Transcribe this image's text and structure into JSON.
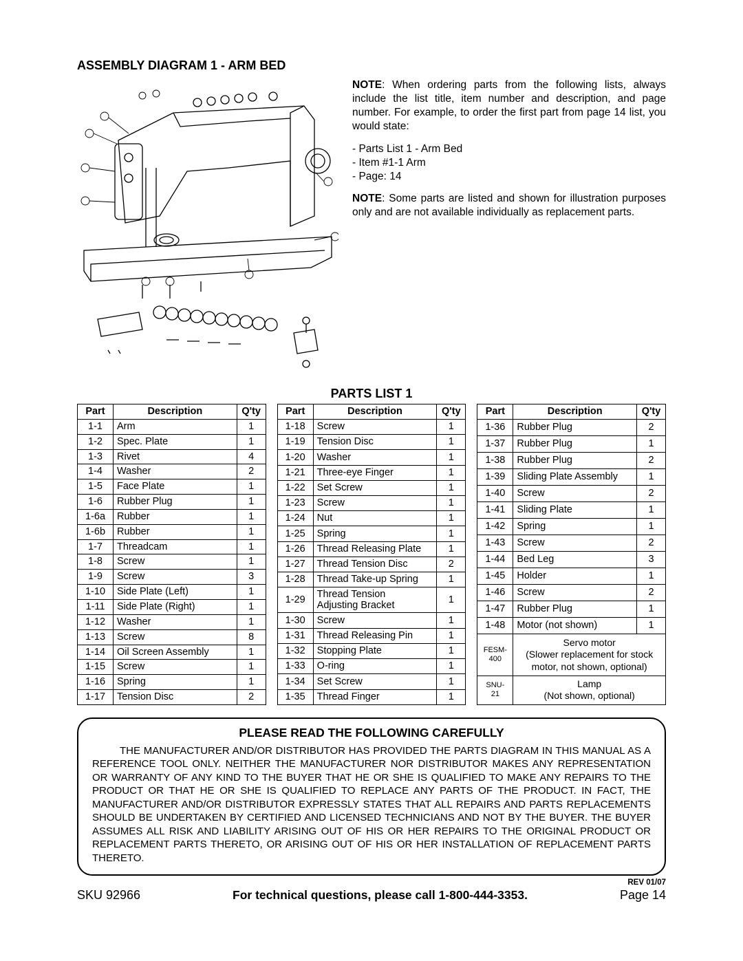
{
  "title": "ASSEMBLY DIAGRAM 1 - ARM BED",
  "note1_bold": "NOTE",
  "note1": ": When ordering parts from the following lists, always include the list title, item number and description, and page number. For example, to order the first part from page 14 list, you would state:",
  "note1_lines": [
    "- Parts List 1 - Arm Bed",
    "- Item #1-1   Arm",
    "- Page: 14"
  ],
  "note2_bold": "NOTE",
  "note2": ": Some parts are listed and shown for illustration purposes only and are not available individually as replacement parts.",
  "parts_title": "PARTS LIST 1",
  "headers": {
    "part": "Part",
    "desc": "Description",
    "qty": "Q'ty"
  },
  "col1": [
    {
      "p": "1-1",
      "d": "Arm",
      "q": "1"
    },
    {
      "p": "1-2",
      "d": "Spec. Plate",
      "q": "1"
    },
    {
      "p": "1-3",
      "d": "Rivet",
      "q": "4"
    },
    {
      "p": "1-4",
      "d": "Washer",
      "q": "2"
    },
    {
      "p": "1-5",
      "d": "Face Plate",
      "q": "1"
    },
    {
      "p": "1-6",
      "d": "Rubber Plug",
      "q": "1"
    },
    {
      "p": "1-6a",
      "d": "Rubber",
      "q": "1"
    },
    {
      "p": "1-6b",
      "d": "Rubber",
      "q": "1"
    },
    {
      "p": "1-7",
      "d": "Threadcam",
      "q": "1"
    },
    {
      "p": "1-8",
      "d": "Screw",
      "q": "1"
    },
    {
      "p": "1-9",
      "d": "Screw",
      "q": "3"
    },
    {
      "p": "1-10",
      "d": "Side Plate (Left)",
      "q": "1"
    },
    {
      "p": "1-11",
      "d": "Side Plate (Right)",
      "q": "1"
    },
    {
      "p": "1-12",
      "d": "Washer",
      "q": "1"
    },
    {
      "p": "1-13",
      "d": "Screw",
      "q": "8"
    },
    {
      "p": "1-14",
      "d": "Oil Screen Assembly",
      "q": "1"
    },
    {
      "p": "1-15",
      "d": "Screw",
      "q": "1"
    },
    {
      "p": "1-16",
      "d": "Spring",
      "q": "1"
    },
    {
      "p": "1-17",
      "d": "Tension Disc",
      "q": "2"
    }
  ],
  "col2": [
    {
      "p": "1-18",
      "d": "Screw",
      "q": "1"
    },
    {
      "p": "1-19",
      "d": "Tension Disc",
      "q": "1"
    },
    {
      "p": "1-20",
      "d": "Washer",
      "q": "1"
    },
    {
      "p": "1-21",
      "d": "Three-eye Finger",
      "q": "1"
    },
    {
      "p": "1-22",
      "d": "Set Screw",
      "q": "1"
    },
    {
      "p": "1-23",
      "d": "Screw",
      "q": "1"
    },
    {
      "p": "1-24",
      "d": "Nut",
      "q": "1"
    },
    {
      "p": "1-25",
      "d": "Spring",
      "q": "1"
    },
    {
      "p": "1-26",
      "d": "Thread Releasing Plate",
      "q": "1"
    },
    {
      "p": "1-27",
      "d": "Thread Tension Disc",
      "q": "2"
    },
    {
      "p": "1-28",
      "d": "Thread Take-up Spring",
      "q": "1"
    },
    {
      "p": "1-29",
      "d": "Thread Tension Adjusting Bracket",
      "q": "1",
      "tall": true
    },
    {
      "p": "1-30",
      "d": "Screw",
      "q": "1"
    },
    {
      "p": "1-31",
      "d": "Thread Releasing Pin",
      "q": "1"
    },
    {
      "p": "1-32",
      "d": "Stopping Plate",
      "q": "1"
    },
    {
      "p": "1-33",
      "d": "O-ring",
      "q": "1"
    },
    {
      "p": "1-34",
      "d": "Set Screw",
      "q": "1"
    },
    {
      "p": "1-35",
      "d": "Thread Finger",
      "q": "1"
    }
  ],
  "col3": [
    {
      "p": "1-36",
      "d": "Rubber Plug",
      "q": "2"
    },
    {
      "p": "1-37",
      "d": "Rubber Plug",
      "q": "1"
    },
    {
      "p": "1-38",
      "d": "Rubber Plug",
      "q": "2"
    },
    {
      "p": "1-39",
      "d": "Sliding Plate Assembly",
      "q": "1"
    },
    {
      "p": "1-40",
      "d": "Screw",
      "q": "2"
    },
    {
      "p": "1-41",
      "d": "Sliding Plate",
      "q": "1"
    },
    {
      "p": "1-42",
      "d": "Spring",
      "q": "1"
    },
    {
      "p": "1-43",
      "d": "Screw",
      "q": "2"
    },
    {
      "p": "1-44",
      "d": "Bed Leg",
      "q": "3"
    },
    {
      "p": "1-45",
      "d": "Holder",
      "q": "1"
    },
    {
      "p": "1-46",
      "d": "Screw",
      "q": "2"
    },
    {
      "p": "1-47",
      "d": "Rubber Plug",
      "q": "1"
    },
    {
      "p": "1-48",
      "d": "Motor (not shown)",
      "q": "1"
    }
  ],
  "col3_special": [
    {
      "p": "FESM-400",
      "d": "Servo motor\n(Slower replacement for stock motor, not shown, optional)"
    },
    {
      "p": "SNU-21",
      "d": "Lamp\n(Not shown, optional)"
    }
  ],
  "warning_title": "PLEASE READ THE FOLLOWING CAREFULLY",
  "warning_text": "THE MANUFACTURER AND/OR DISTRIBUTOR HAS PROVIDED THE PARTS DIAGRAM IN THIS MANUAL AS A REFERENCE TOOL ONLY.  NEITHER THE MANUFACTURER NOR DISTRIBUTOR MAKES ANY REPRESENTATION OR WARRANTY OF ANY KIND TO THE BUYER THAT HE OR SHE IS QUALIFIED TO MAKE ANY REPAIRS TO THE PRODUCT OR THAT HE OR SHE IS QUALIFIED TO REPLACE ANY PARTS OF THE PRODUCT.  IN FACT, THE MANUFACTURER AND/OR DISTRIBUTOR EXPRESSLY STATES THAT ALL REPAIRS AND PARTS REPLACEMENTS SHOULD BE UNDERTAKEN BY CERTIFIED AND LICENSED TECHNICIANS AND NOT BY THE BUYER. THE BUYER ASSUMES ALL RISK AND LIABILITY ARISING OUT OF HIS OR HER REPAIRS TO THE ORIGINAL PRODUCT OR REPLACEMENT PARTS THERETO, OR ARISING OUT OF HIS OR HER INSTALLATION OF REPLACEMENT PARTS THERETO.",
  "rev": "REV 01/07",
  "footer": {
    "sku": "SKU 92966",
    "center": "For technical questions, please call 1-800-444-3353.",
    "page": "Page 14"
  }
}
